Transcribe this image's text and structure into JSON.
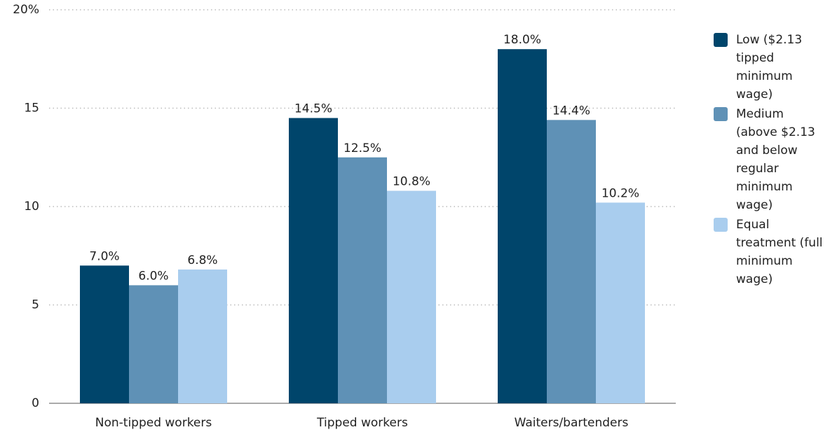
{
  "chart_data": {
    "type": "bar",
    "categories": [
      "Non-tipped workers",
      "Tipped workers",
      "Waiters/bartenders"
    ],
    "series": [
      {
        "name": "Low ($2.13 tipped minimum wage)",
        "color": "#00456b",
        "values": [
          7.0,
          14.5,
          18.0
        ],
        "value_labels": [
          "7.0%",
          "14.5%",
          "18.0%"
        ]
      },
      {
        "name": "Medium (above $2.13 and below regular minimum wage)",
        "color": "#5f91b6",
        "values": [
          6.0,
          12.5,
          14.4
        ],
        "value_labels": [
          "6.0%",
          "12.5%",
          "14.4%"
        ]
      },
      {
        "name": "Equal treatment (full minimum wage)",
        "color": "#a9cdee",
        "values": [
          6.8,
          10.8,
          10.2
        ],
        "value_labels": [
          "6.8%",
          "10.8%",
          "10.2%"
        ]
      }
    ],
    "ylim": [
      0,
      20
    ],
    "yticks": [
      0,
      5,
      10,
      15,
      {
        "value": 20,
        "label": "20%"
      }
    ],
    "grid": true,
    "legend": "right"
  }
}
